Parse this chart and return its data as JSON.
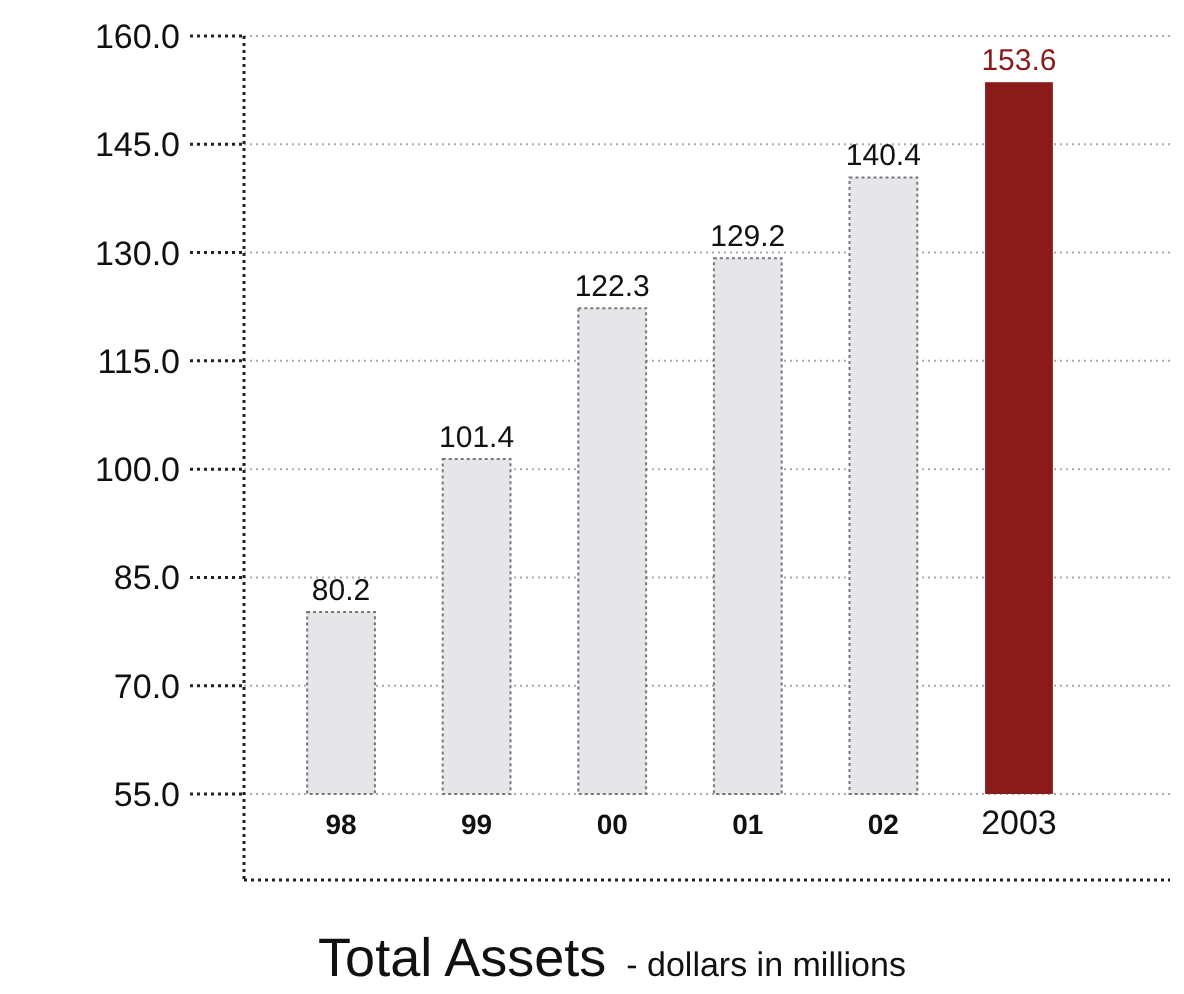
{
  "chart_data": {
    "type": "bar",
    "title": "Total Assets",
    "subtitle": "- dollars in millions",
    "categories": [
      "98",
      "99",
      "00",
      "01",
      "02",
      "2003"
    ],
    "values": [
      80.2,
      101.4,
      122.3,
      129.2,
      140.4,
      153.6
    ],
    "colors": [
      "#e6e5ea",
      "#e6e5ea",
      "#e6e5ea",
      "#e6e5ea",
      "#e6e5ea",
      "#8b1a1a"
    ],
    "ylim": [
      55,
      160
    ],
    "yticks": [
      {
        "value": 55,
        "label": "55.0"
      },
      {
        "value": 70,
        "label": "70.0"
      },
      {
        "value": 85,
        "label": "85.0"
      },
      {
        "value": 100,
        "label": "100.0"
      },
      {
        "value": 115,
        "label": "115.0"
      },
      {
        "value": 130,
        "label": "130.0"
      },
      {
        "value": 145,
        "label": "145.0"
      },
      {
        "value": 160,
        "label": "160.0"
      }
    ],
    "grid": "y",
    "data_labels": true
  }
}
